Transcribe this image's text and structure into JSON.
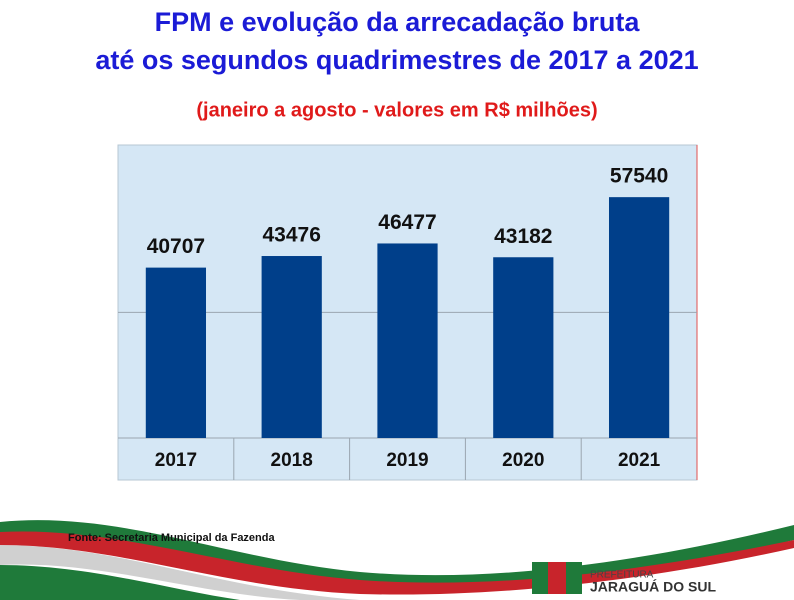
{
  "chart_data": {
    "type": "bar",
    "title": [
      "FPM e evolução da arrecadação bruta",
      "até os segundos quadrimestres de 2017 a 2021"
    ],
    "subtitle": "(janeiro a agosto - valores em R$ milhões)",
    "categories": [
      "2017",
      "2018",
      "2019",
      "2020",
      "2021"
    ],
    "values": [
      40707,
      43476,
      46477,
      43182,
      57540
    ],
    "color": "#003f8a",
    "ylim": [
      0,
      70000
    ],
    "yticks": [
      0,
      30000
    ],
    "grid": true,
    "source": "Fonte: Secretaria Municipal da Fazenda"
  },
  "logo": {
    "line1": "PREFEITURA",
    "line2": "JARAGUÁ DO SUL"
  }
}
